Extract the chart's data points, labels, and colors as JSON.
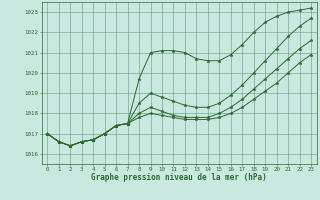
{
  "title": "Graphe pression niveau de la mer (hPa)",
  "background_color": "#c8e8e0",
  "grid_color": "#4a8c6a",
  "line_color": "#2d6a2d",
  "xlim": [
    -0.5,
    23.5
  ],
  "ylim": [
    1015.5,
    1023.5
  ],
  "xticks": [
    0,
    1,
    2,
    3,
    4,
    5,
    6,
    7,
    8,
    9,
    10,
    11,
    12,
    13,
    14,
    15,
    16,
    17,
    18,
    19,
    20,
    21,
    22,
    23
  ],
  "yticks": [
    1016,
    1017,
    1018,
    1019,
    1020,
    1021,
    1022,
    1023
  ],
  "series": [
    [
      1017.0,
      1016.6,
      1016.4,
      1016.6,
      1016.7,
      1017.0,
      1017.4,
      1017.5,
      1019.7,
      1021.0,
      1021.1,
      1021.1,
      1021.0,
      1020.7,
      1020.6,
      1020.6,
      1020.9,
      1021.4,
      1022.0,
      1022.5,
      1022.8,
      1023.0,
      1023.1,
      1023.2
    ],
    [
      1017.0,
      1016.6,
      1016.4,
      1016.6,
      1016.7,
      1017.0,
      1017.4,
      1017.5,
      1018.5,
      1019.0,
      1018.8,
      1018.6,
      1018.4,
      1018.3,
      1018.3,
      1018.5,
      1018.9,
      1019.4,
      1020.0,
      1020.6,
      1021.2,
      1021.8,
      1022.3,
      1022.7
    ],
    [
      1017.0,
      1016.6,
      1016.4,
      1016.6,
      1016.7,
      1017.0,
      1017.4,
      1017.5,
      1018.0,
      1018.3,
      1018.1,
      1017.9,
      1017.8,
      1017.8,
      1017.8,
      1018.0,
      1018.3,
      1018.7,
      1019.2,
      1019.7,
      1020.2,
      1020.7,
      1021.2,
      1021.6
    ],
    [
      1017.0,
      1016.6,
      1016.4,
      1016.6,
      1016.7,
      1017.0,
      1017.4,
      1017.5,
      1017.8,
      1018.0,
      1017.9,
      1017.8,
      1017.7,
      1017.7,
      1017.7,
      1017.8,
      1018.0,
      1018.3,
      1018.7,
      1019.1,
      1019.5,
      1020.0,
      1020.5,
      1020.9
    ]
  ],
  "marker_size": 2.5,
  "linewidth": 0.7
}
